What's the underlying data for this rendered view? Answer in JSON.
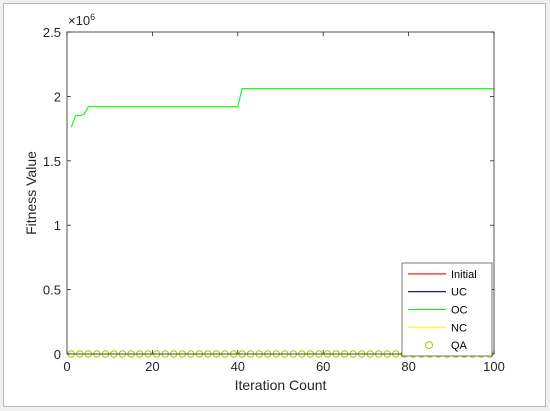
{
  "chart_data": {
    "type": "line",
    "xlabel": "Iteration Count",
    "ylabel": "Fitness Value",
    "exponent_base": "×10",
    "exponent_power": "6",
    "xlim": [
      0,
      100
    ],
    "ylim": [
      0,
      2500000
    ],
    "xticks": [
      0,
      20,
      40,
      60,
      80,
      100
    ],
    "xtick_labels": [
      "0",
      "20",
      "40",
      "60",
      "80",
      "100"
    ],
    "yticks": [
      0,
      500000,
      1000000,
      1500000,
      2000000,
      2500000
    ],
    "ytick_labels": [
      "0",
      "0.5",
      "1",
      "1.5",
      "2",
      "2.5"
    ],
    "grid": false,
    "legend_position": "bottom-right",
    "series": [
      {
        "name": "Initial",
        "color": "#ff0000",
        "marker": "line",
        "x": [
          1,
          100
        ],
        "y": [
          0,
          0
        ]
      },
      {
        "name": "UC",
        "color": "#000080",
        "marker": "line",
        "x": [
          1,
          100
        ],
        "y": [
          0,
          0
        ]
      },
      {
        "name": "OC",
        "color": "#00ff00",
        "marker": "line",
        "x": [
          1,
          2,
          3,
          4,
          5,
          40,
          41,
          100
        ],
        "y": [
          1760000,
          1850000,
          1850000,
          1860000,
          1920000,
          1920000,
          2060000,
          2060000
        ]
      },
      {
        "name": "NC",
        "color": "#ffff00",
        "marker": "line",
        "x": [
          1,
          100
        ],
        "y": [
          0,
          0
        ]
      },
      {
        "name": "QA",
        "color": "#99cc00",
        "marker": "circle",
        "x": [
          1,
          3,
          5,
          7,
          9,
          11,
          13,
          15,
          17,
          19,
          21,
          23,
          25,
          27,
          29,
          31,
          33,
          35,
          37,
          39,
          41,
          43,
          45,
          47,
          49,
          51,
          53,
          55,
          57,
          59,
          61,
          63,
          65,
          67,
          69,
          71,
          73,
          75,
          77,
          79,
          81,
          83,
          85,
          87,
          89,
          91,
          93,
          95,
          97,
          99
        ],
        "y": [
          0,
          0,
          0,
          0,
          0,
          0,
          0,
          0,
          0,
          0,
          0,
          0,
          0,
          0,
          0,
          0,
          0,
          0,
          0,
          0,
          0,
          0,
          0,
          0,
          0,
          0,
          0,
          0,
          0,
          0,
          0,
          0,
          0,
          0,
          0,
          0,
          0,
          0,
          0,
          0,
          0,
          0,
          0,
          0,
          0,
          0,
          0,
          0,
          0,
          0
        ]
      }
    ]
  }
}
